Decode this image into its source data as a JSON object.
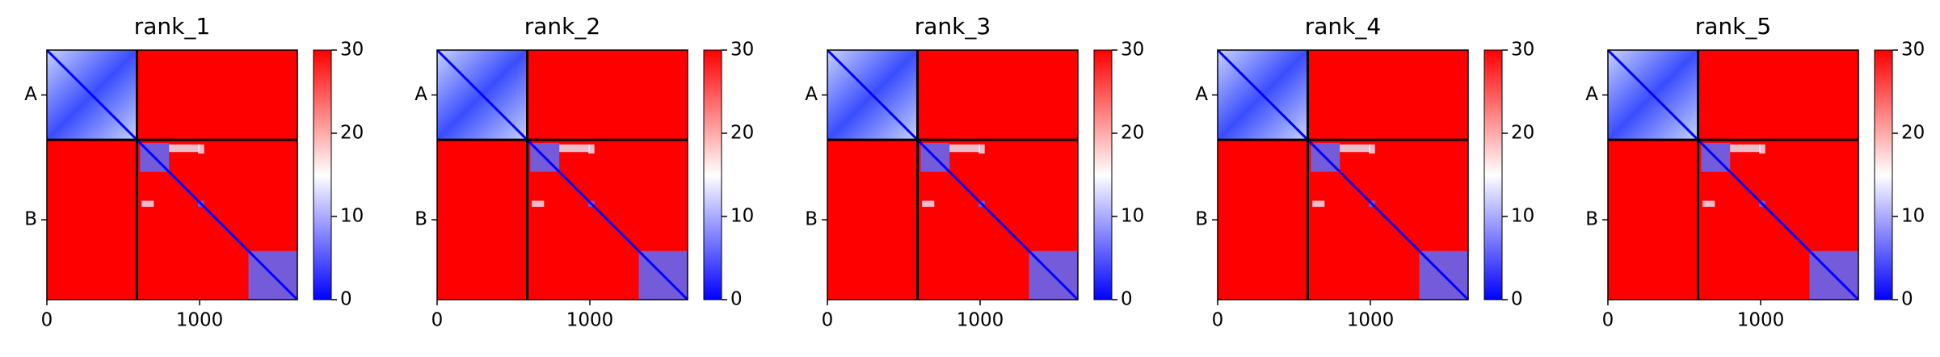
{
  "chart_data": [
    {
      "type": "heatmap",
      "title": "rank_1",
      "xlim": [
        0,
        1640
      ],
      "xticks": [
        0,
        1000
      ],
      "ylim": [
        1640,
        0
      ],
      "yticks": [
        {
          "value": 295,
          "label": "A"
        },
        {
          "value": 1115,
          "label": "B"
        }
      ],
      "chain_break": 590,
      "clim": [
        0,
        30
      ],
      "cticks": [
        0,
        10,
        20,
        30
      ],
      "colormap": [
        "#0000ff",
        "#ffffff",
        "#ff0000"
      ]
    },
    {
      "type": "heatmap",
      "title": "rank_2",
      "xlim": [
        0,
        1640
      ],
      "xticks": [
        0,
        1000
      ],
      "ylim": [
        1640,
        0
      ],
      "yticks": [
        {
          "value": 295,
          "label": "A"
        },
        {
          "value": 1115,
          "label": "B"
        }
      ],
      "chain_break": 590,
      "clim": [
        0,
        30
      ],
      "cticks": [
        0,
        10,
        20,
        30
      ],
      "colormap": [
        "#0000ff",
        "#ffffff",
        "#ff0000"
      ]
    },
    {
      "type": "heatmap",
      "title": "rank_3",
      "xlim": [
        0,
        1640
      ],
      "xticks": [
        0,
        1000
      ],
      "ylim": [
        1640,
        0
      ],
      "yticks": [
        {
          "value": 295,
          "label": "A"
        },
        {
          "value": 1115,
          "label": "B"
        }
      ],
      "chain_break": 590,
      "clim": [
        0,
        30
      ],
      "cticks": [
        0,
        10,
        20,
        30
      ],
      "colormap": [
        "#0000ff",
        "#ffffff",
        "#ff0000"
      ]
    },
    {
      "type": "heatmap",
      "title": "rank_4",
      "xlim": [
        0,
        1640
      ],
      "xticks": [
        0,
        1000
      ],
      "ylim": [
        1640,
        0
      ],
      "yticks": [
        {
          "value": 295,
          "label": "A"
        },
        {
          "value": 1115,
          "label": "B"
        }
      ],
      "chain_break": 590,
      "clim": [
        0,
        30
      ],
      "cticks": [
        0,
        10,
        20,
        30
      ],
      "colormap": [
        "#0000ff",
        "#ffffff",
        "#ff0000"
      ]
    },
    {
      "type": "heatmap",
      "title": "rank_5",
      "xlim": [
        0,
        1640
      ],
      "xticks": [
        0,
        1000
      ],
      "ylim": [
        1640,
        0
      ],
      "yticks": [
        {
          "value": 295,
          "label": "A"
        },
        {
          "value": 1115,
          "label": "B"
        }
      ],
      "chain_break": 590,
      "clim": [
        0,
        30
      ],
      "cticks": [
        0,
        10,
        20,
        30
      ],
      "colormap": [
        "#0000ff",
        "#ffffff",
        "#ff0000"
      ]
    }
  ]
}
